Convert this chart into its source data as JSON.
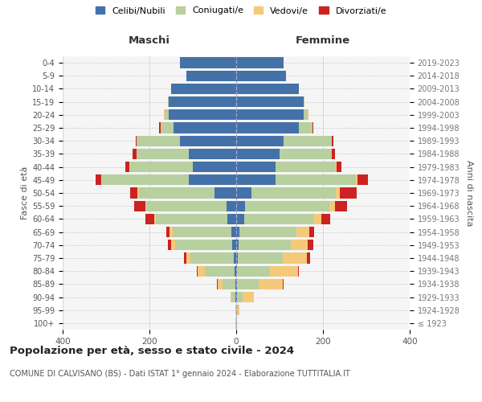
{
  "age_groups": [
    "100+",
    "95-99",
    "90-94",
    "85-89",
    "80-84",
    "75-79",
    "70-74",
    "65-69",
    "60-64",
    "55-59",
    "50-54",
    "45-49",
    "40-44",
    "35-39",
    "30-34",
    "25-29",
    "20-24",
    "15-19",
    "10-14",
    "5-9",
    "0-4"
  ],
  "birth_years": [
    "≤ 1923",
    "1924-1928",
    "1929-1933",
    "1934-1938",
    "1939-1943",
    "1944-1948",
    "1949-1953",
    "1954-1958",
    "1959-1963",
    "1964-1968",
    "1969-1973",
    "1974-1978",
    "1979-1983",
    "1984-1988",
    "1989-1993",
    "1994-1998",
    "1999-2003",
    "2004-2008",
    "2009-2013",
    "2014-2018",
    "2019-2023"
  ],
  "males": {
    "celibi": [
      0,
      0,
      1,
      2,
      3,
      5,
      10,
      12,
      20,
      22,
      50,
      110,
      100,
      110,
      130,
      145,
      155,
      155,
      150,
      115,
      130
    ],
    "coniugati": [
      1,
      2,
      10,
      30,
      70,
      100,
      130,
      135,
      165,
      185,
      175,
      200,
      145,
      120,
      100,
      30,
      10,
      2,
      0,
      0,
      0
    ],
    "vedovi": [
      0,
      0,
      2,
      10,
      15,
      10,
      10,
      6,
      4,
      3,
      2,
      1,
      1,
      0,
      0,
      0,
      2,
      0,
      0,
      0,
      0
    ],
    "divorziati": [
      0,
      0,
      0,
      2,
      2,
      5,
      8,
      8,
      20,
      25,
      18,
      14,
      10,
      8,
      2,
      2,
      0,
      0,
      0,
      0,
      0
    ]
  },
  "females": {
    "nubili": [
      0,
      0,
      1,
      2,
      2,
      3,
      5,
      8,
      18,
      20,
      35,
      90,
      90,
      100,
      110,
      145,
      155,
      155,
      145,
      115,
      110
    ],
    "coniugate": [
      1,
      3,
      14,
      50,
      75,
      105,
      120,
      130,
      160,
      195,
      195,
      185,
      140,
      120,
      110,
      30,
      10,
      2,
      0,
      0,
      0
    ],
    "vedove": [
      1,
      4,
      25,
      55,
      65,
      55,
      40,
      30,
      18,
      12,
      8,
      4,
      2,
      1,
      1,
      0,
      1,
      0,
      0,
      0,
      0
    ],
    "divorziate": [
      0,
      0,
      1,
      3,
      3,
      8,
      12,
      12,
      20,
      28,
      40,
      25,
      10,
      6,
      3,
      3,
      1,
      0,
      0,
      0,
      0
    ]
  },
  "colors": {
    "celibi": "#4472a8",
    "coniugati": "#b8cfa0",
    "vedovi": "#f5c97a",
    "divorziati": "#cc2222"
  },
  "xlim": 400,
  "title": "Popolazione per età, sesso e stato civile - 2024",
  "subtitle": "COMUNE DI CALVISANO (BS) - Dati ISTAT 1° gennaio 2024 - Elaborazione TUTTITALIA.IT",
  "xlabel_maschi": "Maschi",
  "xlabel_femmine": "Femmine",
  "ylabel_left": "Fasce di età",
  "ylabel_right": "Anni di nascita",
  "legend_labels": [
    "Celibi/Nubili",
    "Coniugati/e",
    "Vedovi/e",
    "Divorziati/e"
  ]
}
